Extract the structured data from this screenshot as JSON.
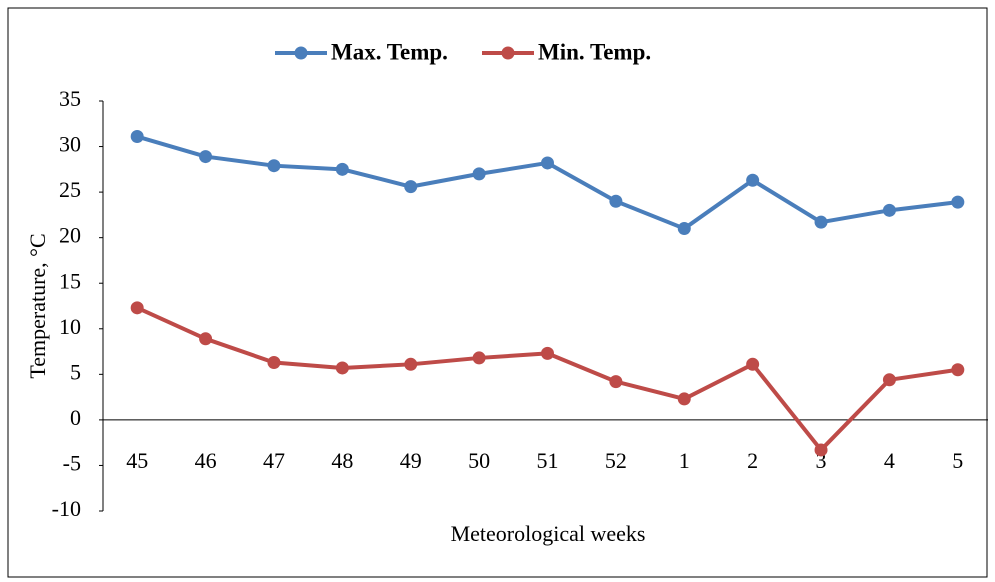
{
  "chart_data": {
    "type": "line",
    "x_label": "Meteorological weeks",
    "y_label": "Temperature, °C",
    "categories": [
      "45",
      "46",
      "47",
      "48",
      "49",
      "50",
      "51",
      "52",
      "1",
      "2",
      "3",
      "4",
      "5"
    ],
    "series": [
      {
        "name": "Max. Temp.",
        "color": "#4a7ebb",
        "values": [
          31.1,
          28.9,
          27.9,
          27.5,
          25.6,
          27.0,
          28.2,
          24.0,
          21.0,
          26.3,
          21.7,
          23.0,
          23.9
        ]
      },
      {
        "name": "Min. Temp.",
        "color": "#be4b48",
        "values": [
          12.3,
          8.9,
          6.3,
          5.7,
          6.1,
          6.8,
          7.3,
          4.2,
          2.3,
          6.1,
          -3.3,
          4.4,
          5.5
        ]
      }
    ],
    "ylim": [
      -10,
      35
    ],
    "yticks": [
      -10,
      -5,
      0,
      5,
      10,
      15,
      20,
      25,
      30,
      35
    ],
    "grid": false,
    "legend": "top"
  }
}
